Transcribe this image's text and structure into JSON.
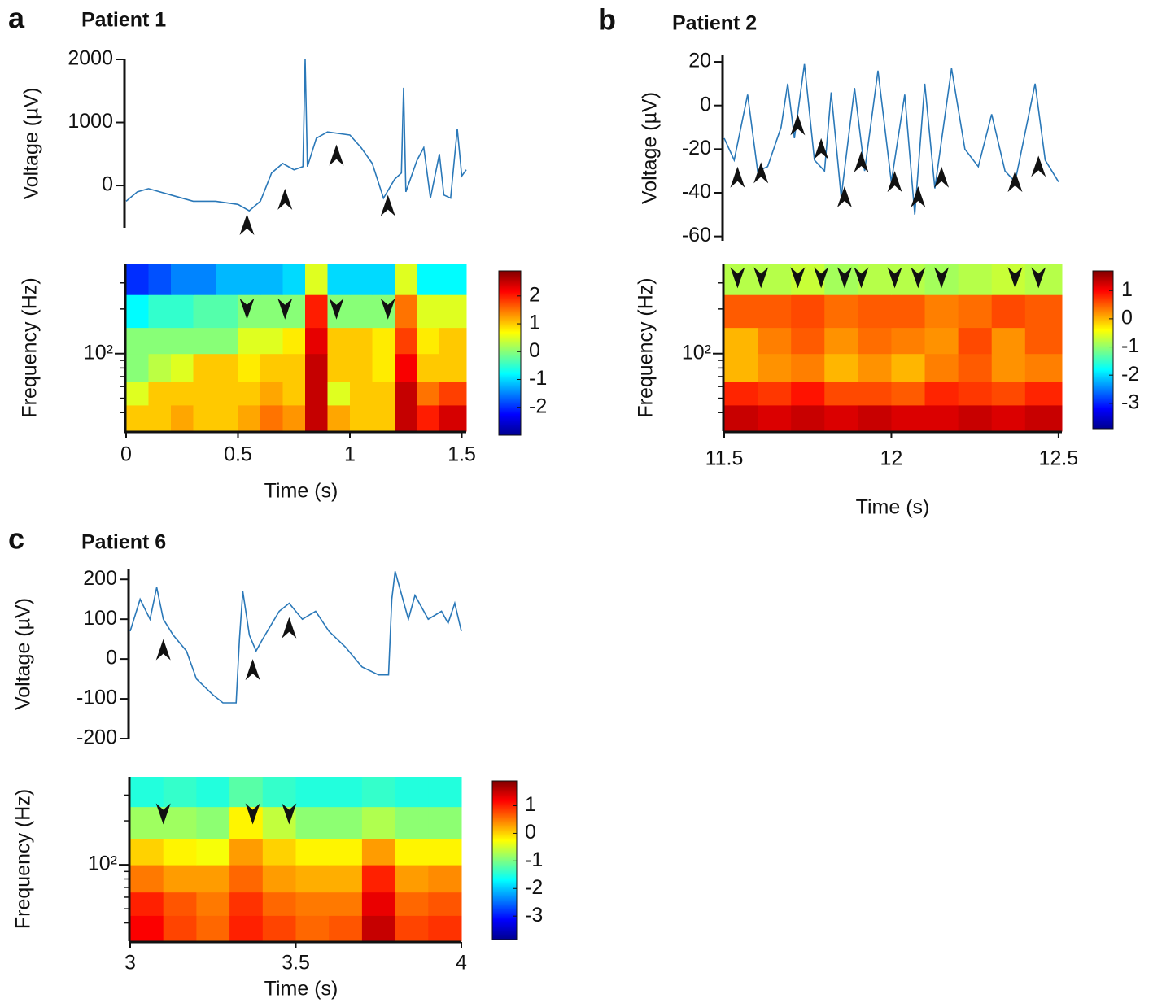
{
  "chart_data": [
    {
      "type": "line",
      "panel_label": "a",
      "title": "Patient 1",
      "y_label": "Voltage (µV)",
      "x": [
        0,
        0.05,
        0.1,
        0.2,
        0.3,
        0.4,
        0.5,
        0.55,
        0.6,
        0.65,
        0.7,
        0.75,
        0.79,
        0.8,
        0.81,
        0.85,
        0.9,
        1.0,
        1.05,
        1.1,
        1.15,
        1.2,
        1.23,
        1.24,
        1.25,
        1.3,
        1.33,
        1.36,
        1.4,
        1.42,
        1.45,
        1.48,
        1.5,
        1.52
      ],
      "values": [
        -250,
        -100,
        -50,
        -150,
        -250,
        -250,
        -300,
        -400,
        -250,
        200,
        350,
        250,
        300,
        2000,
        300,
        750,
        850,
        800,
        600,
        350,
        -200,
        100,
        200,
        1550,
        -100,
        400,
        600,
        -200,
        500,
        -150,
        -200,
        900,
        150,
        250
      ],
      "color": "#2a78b8",
      "xlim": [
        0,
        1.52
      ],
      "ylim": [
        -670,
        2000
      ],
      "yticks": [
        0,
        1000,
        2000
      ],
      "arrows": {
        "x": [
          0.54,
          0.71,
          0.94,
          1.17
        ],
        "y": [
          -450,
          -50,
          650,
          -150
        ]
      }
    },
    {
      "type": "heatmap",
      "y_label": "Frequency (Hz)",
      "x_label": "Time (s)",
      "colormap": "jet",
      "log_y": true,
      "x_bins": [
        0,
        0.1,
        0.2,
        0.3,
        0.4,
        0.5,
        0.6,
        0.7,
        0.8,
        0.9,
        1.0,
        1.1,
        1.2,
        1.3,
        1.4,
        1.52
      ],
      "y_bins": [
        30,
        45,
        65,
        100,
        150,
        250,
        400
      ],
      "z": [
        [
          1,
          1,
          1.2,
          1,
          1,
          1.2,
          1.5,
          1.3,
          2.5,
          1.2,
          1,
          1,
          2.5,
          2,
          2.4
        ],
        [
          0.5,
          1,
          1,
          1,
          1,
          1,
          1.2,
          1,
          2.5,
          0.5,
          1,
          1,
          2.5,
          1.5,
          1.8
        ],
        [
          0,
          0.3,
          0.5,
          1,
          1,
          0.8,
          1,
          1,
          2.5,
          1,
          1,
          0.8,
          2.2,
          1,
          1
        ],
        [
          0,
          0,
          0,
          0,
          0,
          0.5,
          0.5,
          0.8,
          2.3,
          1,
          1,
          0.8,
          1.8,
          0.8,
          1
        ],
        [
          -0.8,
          -0.5,
          -0.5,
          -0.3,
          -0.3,
          0,
          0,
          0,
          2,
          0,
          0,
          0,
          1.5,
          0.5,
          0.5
        ],
        [
          -2,
          -1.8,
          -1.5,
          -1.5,
          -1.2,
          -1.2,
          -1.2,
          -1,
          0.5,
          -1,
          -1,
          -1,
          0.5,
          -0.8,
          -0.8
        ]
      ],
      "xlim": [
        0,
        1.52
      ],
      "xticks": [
        0,
        0.5,
        1,
        1.5
      ],
      "ylim": [
        30,
        400
      ],
      "yticks": [
        {
          "value": 100,
          "label": "10²"
        }
      ],
      "minor_yticks": [
        40,
        50,
        60,
        70,
        80,
        90,
        200,
        300
      ],
      "clim": [
        -3,
        2.9
      ],
      "cticks": [
        2,
        1,
        0,
        -1,
        -2
      ],
      "arrows": {
        "x": [
          0.54,
          0.71,
          0.94,
          1.17
        ],
        "y": [
          170,
          170,
          170,
          170
        ]
      }
    },
    {
      "type": "line",
      "panel_label": "b",
      "title": "Patient 2",
      "y_label": "Voltage (µV)",
      "x": [
        11.5,
        11.53,
        11.57,
        11.6,
        11.63,
        11.67,
        11.69,
        11.71,
        11.74,
        11.77,
        11.8,
        11.82,
        11.85,
        11.89,
        11.92,
        11.96,
        12.0,
        12.04,
        12.07,
        12.1,
        12.13,
        12.18,
        12.22,
        12.26,
        12.3,
        12.34,
        12.37,
        12.43,
        12.46,
        12.5
      ],
      "values": [
        -15,
        -25,
        5,
        -30,
        -28,
        -10,
        10,
        -15,
        19,
        -25,
        -30,
        6,
        -42,
        8,
        -30,
        16,
        -35,
        5,
        -50,
        10,
        -38,
        17,
        -20,
        -28,
        -4,
        -30,
        -35,
        10,
        -25,
        -35
      ],
      "color": "#2a78b8",
      "xlim": [
        11.5,
        12.51
      ],
      "ylim": [
        -62,
        23
      ],
      "yticks": [
        -60,
        -40,
        -20,
        0,
        20
      ],
      "arrows": {
        "x": [
          11.54,
          11.61,
          11.72,
          11.79,
          11.86,
          11.91,
          12.01,
          12.08,
          12.15,
          12.37,
          12.44
        ],
        "y": [
          -28,
          -26,
          -4,
          -15,
          -37,
          -21,
          -30,
          -37,
          -28,
          -30,
          -23
        ]
      }
    },
    {
      "type": "heatmap",
      "y_label": "Frequency (Hz)",
      "x_label": "Time (s)",
      "colormap": "jet",
      "log_y": true,
      "x_bins": [
        11.5,
        11.6,
        11.7,
        11.8,
        11.9,
        12.0,
        12.1,
        12.2,
        12.3,
        12.4,
        12.51
      ],
      "y_bins": [
        30,
        45,
        65,
        100,
        150,
        250,
        400
      ],
      "z": [
        [
          1.3,
          1.2,
          1.3,
          1.2,
          1.3,
          1.2,
          1.2,
          1.3,
          1.2,
          1.3
        ],
        [
          0.8,
          0.7,
          0.9,
          0.6,
          0.6,
          0.5,
          0.8,
          0.7,
          0.6,
          0.8
        ],
        [
          0,
          0.2,
          0.3,
          0,
          0.2,
          0,
          0.3,
          0.5,
          0.2,
          0.3
        ],
        [
          0,
          0.3,
          0.5,
          0.2,
          0.4,
          0.3,
          0.2,
          0.6,
          0.2,
          0.5
        ],
        [
          0.5,
          0.5,
          0.6,
          0.4,
          0.5,
          0.5,
          0.3,
          0.4,
          0.6,
          0.5
        ],
        [
          -0.8,
          -0.8,
          -0.7,
          -0.9,
          -0.8,
          -0.8,
          -0.9,
          -0.8,
          -0.7,
          -0.8
        ]
      ],
      "xlim": [
        11.5,
        12.51
      ],
      "xticks": [
        11.5,
        12,
        12.5
      ],
      "ylim": [
        30,
        400
      ],
      "yticks": [
        {
          "value": 100,
          "label": "10²"
        }
      ],
      "minor_yticks": [
        40,
        50,
        60,
        70,
        80,
        90,
        200,
        300
      ],
      "clim": [
        -3.9,
        1.7
      ],
      "cticks": [
        1,
        0,
        -1,
        -2,
        -3
      ],
      "arrows": {
        "x": [
          11.54,
          11.61,
          11.72,
          11.79,
          11.86,
          11.91,
          12.01,
          12.08,
          12.15,
          12.37,
          12.44
        ],
        "y": [
          276,
          276,
          276,
          276,
          276,
          276,
          276,
          276,
          276,
          276,
          276
        ]
      }
    },
    {
      "type": "line",
      "panel_label": "c",
      "title": "Patient 6",
      "y_label": "Voltage (µV)",
      "x": [
        3,
        3.03,
        3.06,
        3.08,
        3.1,
        3.13,
        3.17,
        3.2,
        3.25,
        3.28,
        3.32,
        3.33,
        3.34,
        3.36,
        3.38,
        3.4,
        3.45,
        3.48,
        3.52,
        3.56,
        3.6,
        3.65,
        3.7,
        3.75,
        3.78,
        3.79,
        3.8,
        3.84,
        3.86,
        3.9,
        3.94,
        3.96,
        3.98,
        4
      ],
      "values": [
        70,
        150,
        100,
        180,
        100,
        60,
        20,
        -50,
        -90,
        -110,
        -110,
        50,
        170,
        60,
        20,
        50,
        120,
        140,
        100,
        120,
        70,
        30,
        -20,
        -40,
        -40,
        150,
        220,
        100,
        160,
        100,
        120,
        90,
        140,
        70
      ],
      "color": "#2a78b8",
      "xlim": [
        3,
        4
      ],
      "ylim": [
        -200,
        225
      ],
      "yticks": [
        -200,
        -100,
        0,
        100,
        200
      ],
      "arrows": {
        "x": [
          3.1,
          3.37,
          3.48
        ],
        "y": [
          50,
          0,
          105
        ]
      }
    },
    {
      "type": "heatmap",
      "y_label": "Frequency (Hz)",
      "x_label": "Time (s)",
      "colormap": "jet",
      "log_y": true,
      "x_bins": [
        3,
        3.1,
        3.2,
        3.3,
        3.4,
        3.5,
        3.6,
        3.7,
        3.8,
        3.9,
        4
      ],
      "y_bins": [
        30,
        45,
        65,
        100,
        150,
        250,
        400
      ],
      "z": [
        [
          1.2,
          0.8,
          0.6,
          1,
          0.8,
          0.6,
          0.7,
          1.5,
          0.8,
          0.9
        ],
        [
          1,
          0.7,
          0.5,
          0.9,
          0.6,
          0.5,
          0.5,
          1.3,
          0.6,
          0.7
        ],
        [
          0.5,
          0.3,
          0.3,
          0.6,
          0.3,
          0.2,
          0.2,
          1,
          0.3,
          0.4
        ],
        [
          0,
          -0.2,
          -0.3,
          0.3,
          0,
          -0.2,
          -0.2,
          0.3,
          -0.2,
          -0.2
        ],
        [
          -0.8,
          -0.8,
          -0.9,
          -0.2,
          -0.6,
          -0.9,
          -0.9,
          -0.7,
          -0.9,
          -0.9
        ],
        [
          -1.5,
          -1.4,
          -1.5,
          -1.2,
          -1.4,
          -1.5,
          -1.5,
          -1.4,
          -1.5,
          -1.5
        ]
      ],
      "xlim": [
        3,
        4
      ],
      "xticks": [
        3,
        3.5,
        4
      ],
      "ylim": [
        30,
        400
      ],
      "yticks": [
        {
          "value": 100,
          "label": "10²"
        }
      ],
      "minor_yticks": [
        40,
        50,
        60,
        70,
        80,
        90,
        200,
        300
      ],
      "clim": [
        -3.85,
        1.9
      ],
      "cticks": [
        1,
        0,
        -1,
        -2,
        -3
      ],
      "arrows": {
        "x": [
          3.1,
          3.37,
          3.48
        ],
        "y": [
          189,
          189,
          189
        ]
      }
    }
  ]
}
